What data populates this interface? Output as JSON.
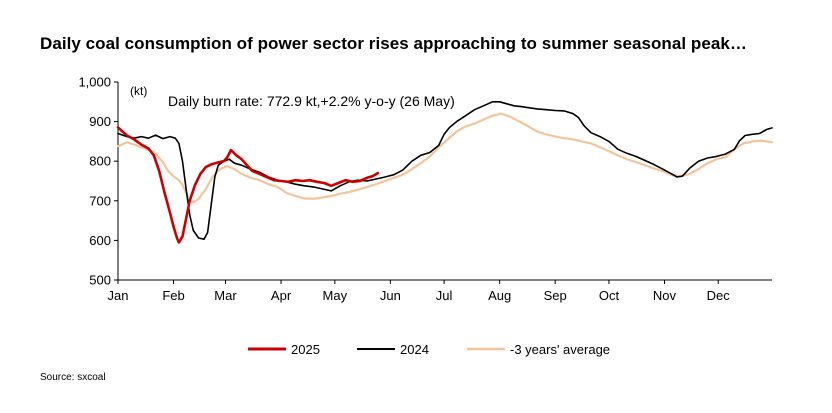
{
  "title": "Daily coal consumption of power sector rises approaching to summer seasonal peak…",
  "source": "Source: sxcoal",
  "chart_data": {
    "type": "line",
    "unit_label": "(kt)",
    "annotation": "Daily burn rate: 772.9 kt,+2.2% y-o-y (26 May)",
    "ylim": [
      500,
      1000
    ],
    "yticks": [
      500,
      600,
      700,
      800,
      900,
      1000
    ],
    "ytick_labels": [
      "500",
      "600",
      "700",
      "800",
      "900",
      "1,000"
    ],
    "xlim": [
      1,
      366
    ],
    "xtick_days": [
      1,
      32,
      61,
      92,
      122,
      153,
      183,
      214,
      245,
      275,
      306,
      336
    ],
    "xtick_labels": [
      "Jan",
      "Feb",
      "Mar",
      "Apr",
      "May",
      "Jun",
      "Jul",
      "Aug",
      "Sep",
      "Oct",
      "Nov",
      "Dec"
    ],
    "grid": false,
    "legend_position": "bottom",
    "series": [
      {
        "name": "2025",
        "color": "#cc0000",
        "width": 2.6,
        "points": [
          [
            1,
            885
          ],
          [
            6,
            865
          ],
          [
            10,
            855
          ],
          [
            14,
            842
          ],
          [
            18,
            832
          ],
          [
            21,
            815
          ],
          [
            24,
            775
          ],
          [
            27,
            720
          ],
          [
            30,
            670
          ],
          [
            32,
            635
          ],
          [
            34,
            605
          ],
          [
            35,
            595
          ],
          [
            37,
            610
          ],
          [
            39,
            655
          ],
          [
            41,
            700
          ],
          [
            44,
            740
          ],
          [
            47,
            768
          ],
          [
            50,
            785
          ],
          [
            53,
            792
          ],
          [
            57,
            797
          ],
          [
            60,
            800
          ],
          [
            62,
            810
          ],
          [
            64,
            828
          ],
          [
            67,
            815
          ],
          [
            70,
            805
          ],
          [
            73,
            790
          ],
          [
            76,
            775
          ],
          [
            80,
            768
          ],
          [
            84,
            760
          ],
          [
            88,
            752
          ],
          [
            92,
            750
          ],
          [
            96,
            748
          ],
          [
            100,
            752
          ],
          [
            104,
            750
          ],
          [
            108,
            752
          ],
          [
            112,
            748
          ],
          [
            116,
            745
          ],
          [
            120,
            738
          ],
          [
            124,
            745
          ],
          [
            128,
            752
          ],
          [
            132,
            748
          ],
          [
            136,
            750
          ],
          [
            140,
            758
          ],
          [
            143,
            762
          ],
          [
            146,
            770
          ]
        ]
      },
      {
        "name": "2024",
        "color": "#000000",
        "width": 1.6,
        "points": [
          [
            1,
            870
          ],
          [
            6,
            862
          ],
          [
            10,
            858
          ],
          [
            14,
            862
          ],
          [
            18,
            858
          ],
          [
            22,
            866
          ],
          [
            26,
            857
          ],
          [
            30,
            862
          ],
          [
            33,
            858
          ],
          [
            35,
            845
          ],
          [
            37,
            800
          ],
          [
            39,
            730
          ],
          [
            41,
            665
          ],
          [
            43,
            625
          ],
          [
            46,
            606
          ],
          [
            49,
            603
          ],
          [
            51,
            620
          ],
          [
            53,
            690
          ],
          [
            55,
            760
          ],
          [
            57,
            790
          ],
          [
            60,
            800
          ],
          [
            63,
            805
          ],
          [
            66,
            795
          ],
          [
            70,
            790
          ],
          [
            75,
            780
          ],
          [
            80,
            772
          ],
          [
            85,
            760
          ],
          [
            90,
            752
          ],
          [
            95,
            748
          ],
          [
            100,
            742
          ],
          [
            105,
            738
          ],
          [
            110,
            735
          ],
          [
            115,
            730
          ],
          [
            120,
            725
          ],
          [
            125,
            738
          ],
          [
            130,
            748
          ],
          [
            135,
            752
          ],
          [
            140,
            750
          ],
          [
            145,
            755
          ],
          [
            150,
            760
          ],
          [
            155,
            766
          ],
          [
            160,
            778
          ],
          [
            165,
            800
          ],
          [
            170,
            815
          ],
          [
            175,
            822
          ],
          [
            180,
            840
          ],
          [
            183,
            868
          ],
          [
            186,
            885
          ],
          [
            190,
            900
          ],
          [
            195,
            915
          ],
          [
            200,
            930
          ],
          [
            205,
            940
          ],
          [
            210,
            950
          ],
          [
            214,
            950
          ],
          [
            218,
            945
          ],
          [
            222,
            940
          ],
          [
            226,
            938
          ],
          [
            230,
            935
          ],
          [
            235,
            932
          ],
          [
            240,
            930
          ],
          [
            245,
            928
          ],
          [
            250,
            927
          ],
          [
            255,
            920
          ],
          [
            258,
            910
          ],
          [
            261,
            890
          ],
          [
            265,
            872
          ],
          [
            270,
            862
          ],
          [
            275,
            850
          ],
          [
            280,
            830
          ],
          [
            285,
            820
          ],
          [
            290,
            812
          ],
          [
            295,
            802
          ],
          [
            300,
            792
          ],
          [
            305,
            780
          ],
          [
            310,
            768
          ],
          [
            313,
            760
          ],
          [
            316,
            762
          ],
          [
            320,
            782
          ],
          [
            325,
            800
          ],
          [
            330,
            808
          ],
          [
            335,
            812
          ],
          [
            340,
            818
          ],
          [
            345,
            830
          ],
          [
            348,
            852
          ],
          [
            351,
            865
          ],
          [
            355,
            868
          ],
          [
            359,
            870
          ],
          [
            363,
            880
          ],
          [
            366,
            884
          ]
        ]
      },
      {
        "name": "-3 years' average",
        "color": "#f4c49a",
        "width": 2.2,
        "points": [
          [
            1,
            838
          ],
          [
            6,
            848
          ],
          [
            10,
            842
          ],
          [
            14,
            835
          ],
          [
            18,
            828
          ],
          [
            22,
            818
          ],
          [
            26,
            798
          ],
          [
            29,
            775
          ],
          [
            32,
            762
          ],
          [
            35,
            752
          ],
          [
            37,
            740
          ],
          [
            39,
            720
          ],
          [
            41,
            700
          ],
          [
            43,
            696
          ],
          [
            46,
            705
          ],
          [
            50,
            730
          ],
          [
            54,
            762
          ],
          [
            58,
            780
          ],
          [
            62,
            788
          ],
          [
            66,
            780
          ],
          [
            70,
            768
          ],
          [
            75,
            758
          ],
          [
            80,
            752
          ],
          [
            85,
            742
          ],
          [
            90,
            735
          ],
          [
            95,
            720
          ],
          [
            100,
            712
          ],
          [
            105,
            706
          ],
          [
            110,
            705
          ],
          [
            115,
            708
          ],
          [
            120,
            712
          ],
          [
            125,
            718
          ],
          [
            130,
            722
          ],
          [
            135,
            728
          ],
          [
            140,
            735
          ],
          [
            145,
            742
          ],
          [
            150,
            750
          ],
          [
            155,
            758
          ],
          [
            160,
            766
          ],
          [
            165,
            780
          ],
          [
            170,
            795
          ],
          [
            175,
            812
          ],
          [
            180,
            835
          ],
          [
            185,
            855
          ],
          [
            190,
            875
          ],
          [
            195,
            888
          ],
          [
            200,
            895
          ],
          [
            205,
            905
          ],
          [
            210,
            915
          ],
          [
            215,
            920
          ],
          [
            220,
            912
          ],
          [
            225,
            900
          ],
          [
            230,
            888
          ],
          [
            235,
            875
          ],
          [
            240,
            868
          ],
          [
            245,
            862
          ],
          [
            250,
            858
          ],
          [
            255,
            855
          ],
          [
            260,
            850
          ],
          [
            265,
            845
          ],
          [
            270,
            835
          ],
          [
            275,
            825
          ],
          [
            280,
            815
          ],
          [
            285,
            805
          ],
          [
            290,
            798
          ],
          [
            295,
            790
          ],
          [
            300,
            782
          ],
          [
            305,
            775
          ],
          [
            310,
            765
          ],
          [
            315,
            762
          ],
          [
            320,
            768
          ],
          [
            325,
            780
          ],
          [
            330,
            795
          ],
          [
            335,
            805
          ],
          [
            340,
            810
          ],
          [
            345,
            830
          ],
          [
            350,
            845
          ],
          [
            355,
            850
          ],
          [
            360,
            852
          ],
          [
            366,
            848
          ]
        ]
      }
    ]
  }
}
